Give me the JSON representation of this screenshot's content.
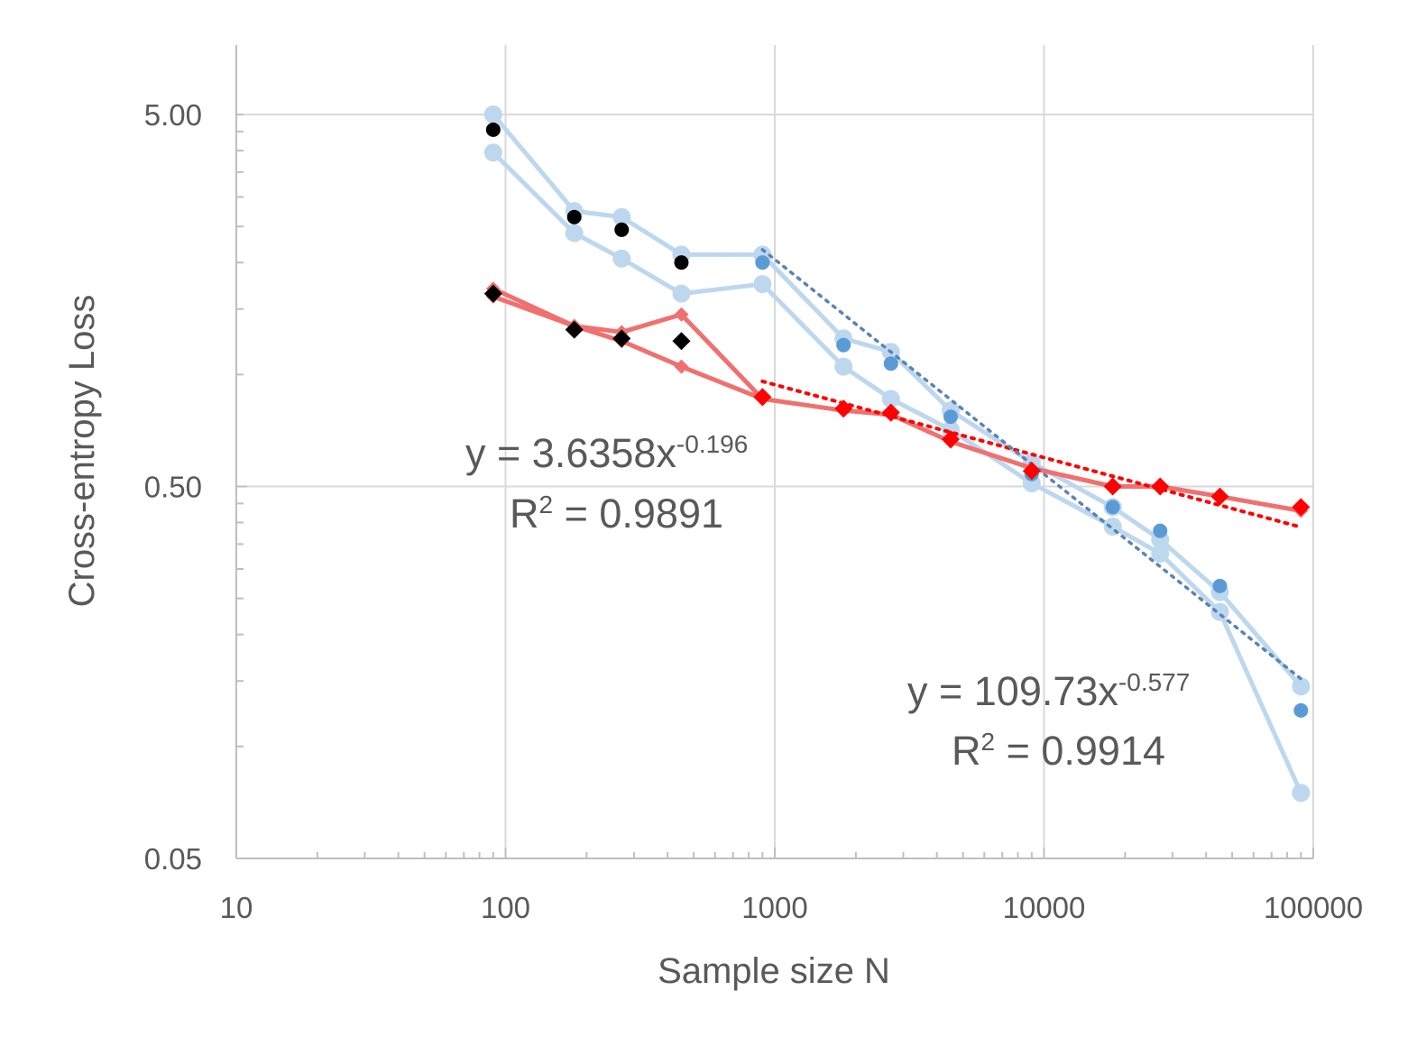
{
  "chart_data": {
    "type": "line",
    "xlabel": "Sample size N",
    "ylabel": "Cross-entropy Loss",
    "x_scale": "log",
    "y_scale": "log",
    "xlim": [
      10,
      100000
    ],
    "ylim": [
      0.05,
      7.5
    ],
    "x_ticks": [
      "10",
      "100",
      "1000",
      "10000",
      "100000"
    ],
    "y_ticks": [
      "0.05",
      "0.50",
      "5.00"
    ],
    "grid": true,
    "legend": "none",
    "colors": {
      "light_blue": "#BDD7EE",
      "mid_blue": "#5B9BD5",
      "trend_blue": "#5B84B1",
      "light_red": "#F07070",
      "red": "#FF0000",
      "black": "#000000",
      "grid": "#D9D9D9",
      "axis": "#BFBFBF",
      "text": "#595959"
    },
    "series": [
      {
        "style": "light-blue-line",
        "x": [
          90,
          180,
          270,
          450,
          900,
          1800,
          2700,
          4500,
          9000,
          18000,
          27000,
          45000,
          90000
        ],
        "y": [
          5.0,
          2.75,
          2.65,
          2.1,
          2.1,
          1.25,
          1.15,
          0.8,
          0.58,
          0.44,
          0.36,
          0.26,
          0.145
        ]
      },
      {
        "style": "light-blue-line",
        "x": [
          90,
          180,
          270,
          450,
          900,
          1800,
          2700,
          4500,
          9000,
          18000,
          27000,
          45000,
          90000
        ],
        "y": [
          3.95,
          2.4,
          2.05,
          1.65,
          1.75,
          1.05,
          0.86,
          0.71,
          0.51,
          0.39,
          0.33,
          0.23,
          0.075
        ]
      },
      {
        "style": "blue-points",
        "x": [
          900,
          1800,
          2700,
          4500,
          9000,
          18000,
          27000,
          45000,
          90000
        ],
        "y": [
          2.0,
          1.2,
          1.07,
          0.77,
          0.54,
          0.44,
          0.38,
          0.27,
          0.125
        ]
      },
      {
        "style": "black-points",
        "x": [
          90,
          180,
          270,
          450
        ],
        "y": [
          4.55,
          2.65,
          2.45,
          2.0
        ]
      },
      {
        "style": "light-red-line",
        "x": [
          90,
          180,
          270,
          450,
          900
        ],
        "y": [
          1.7,
          1.35,
          1.3,
          1.45,
          0.86
        ]
      },
      {
        "style": "light-red-line",
        "x": [
          90,
          180,
          270,
          450,
          900,
          1800,
          2700,
          4500,
          9000,
          18000,
          27000,
          45000,
          90000
        ],
        "y": [
          1.62,
          1.35,
          1.23,
          1.05,
          0.86,
          0.8,
          0.78,
          0.66,
          0.56,
          0.5,
          0.5,
          0.47,
          0.43
        ]
      },
      {
        "style": "red-diamonds",
        "x": [
          900,
          1800,
          2700,
          4500,
          9000,
          18000,
          27000,
          45000,
          90000
        ],
        "y": [
          0.87,
          0.81,
          0.79,
          0.67,
          0.55,
          0.5,
          0.5,
          0.47,
          0.44
        ]
      },
      {
        "style": "black-diamonds",
        "x": [
          90,
          180,
          270,
          450
        ],
        "y": [
          1.65,
          1.32,
          1.25,
          1.23
        ]
      }
    ],
    "trendlines": [
      {
        "style": "red-dotted",
        "coef": 3.6358,
        "exponent": -0.196,
        "x_range": [
          900,
          90000
        ]
      },
      {
        "style": "blue-dotted",
        "coef": 109.73,
        "exponent": -0.577,
        "x_range": [
          900,
          90000
        ]
      }
    ],
    "annotations": [
      {
        "eq_base": "y = 3.6358x",
        "eq_exp": "-0.196",
        "r2_base": "R",
        "r2_exp": "2",
        "r2_value": " = 0.9891"
      },
      {
        "eq_base": "y = 109.73x",
        "eq_exp": "-0.577",
        "r2_base": "R",
        "r2_exp": "2",
        "r2_value": " = 0.9914"
      }
    ]
  }
}
